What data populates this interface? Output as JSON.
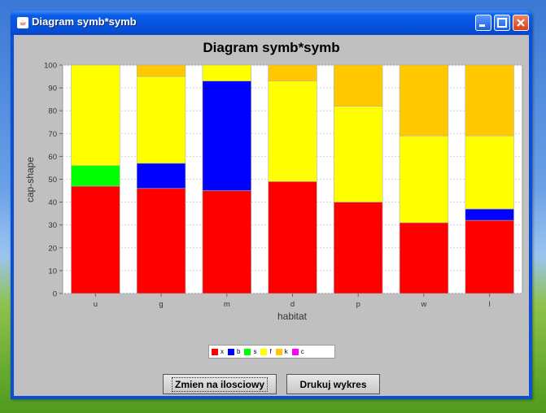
{
  "window": {
    "title": "Diagram symb*symb"
  },
  "chart_data": {
    "type": "bar",
    "stacked": true,
    "title": "Diagram symb*symb",
    "xlabel": "habitat",
    "ylabel": "cap-shape",
    "ylim": [
      0,
      100
    ],
    "yticks": [
      0,
      10,
      20,
      30,
      40,
      50,
      60,
      70,
      80,
      90,
      100
    ],
    "grid": true,
    "legend_position": "bottom",
    "categories": [
      "u",
      "g",
      "m",
      "d",
      "p",
      "w",
      "l"
    ],
    "series": [
      {
        "name": "x",
        "color": "#ff0000",
        "values": [
          47,
          46,
          45,
          49,
          40,
          31,
          32
        ]
      },
      {
        "name": "b",
        "color": "#0000ff",
        "values": [
          0,
          11,
          48,
          0,
          0,
          0,
          5
        ]
      },
      {
        "name": "s",
        "color": "#00ff00",
        "values": [
          9,
          0,
          0,
          0,
          0,
          0,
          0
        ]
      },
      {
        "name": "f",
        "color": "#ffff00",
        "values": [
          44,
          38,
          7,
          44,
          42,
          38,
          32
        ]
      },
      {
        "name": "k",
        "color": "#ffc800",
        "values": [
          0,
          5,
          0,
          7,
          18,
          31,
          31
        ]
      },
      {
        "name": "c",
        "color": "#ff00ff",
        "values": [
          0,
          0,
          0,
          0,
          0,
          0,
          0
        ]
      }
    ]
  },
  "buttons": {
    "switch_label": "Zmien na ilosciowy",
    "print_label": "Drukuj wykres"
  }
}
